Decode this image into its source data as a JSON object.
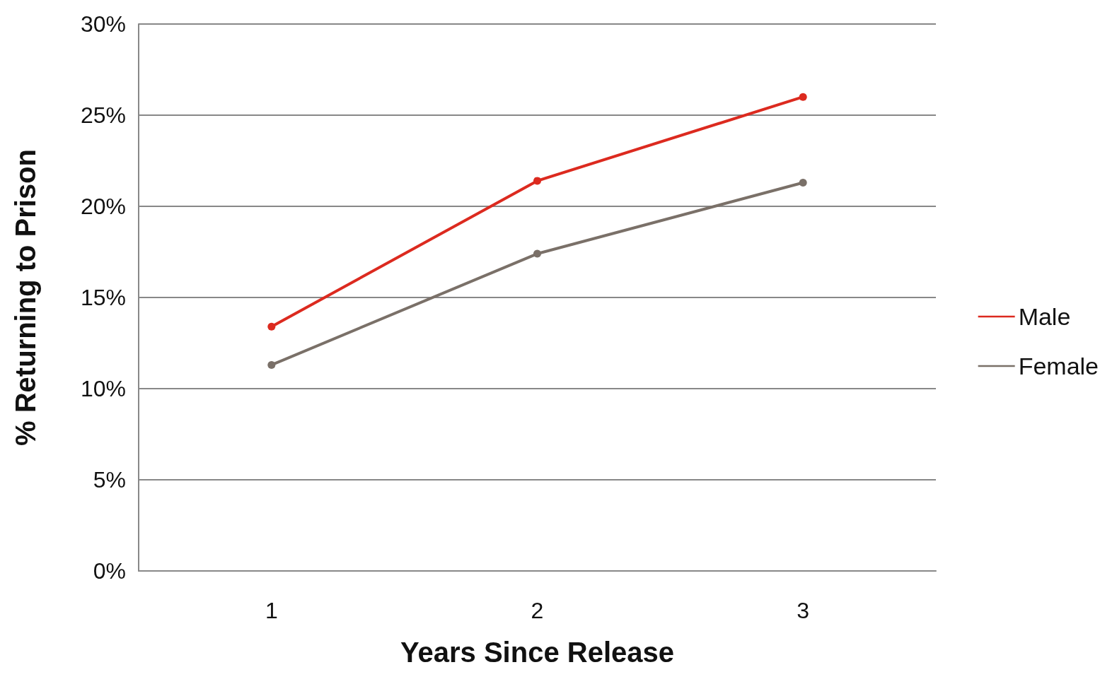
{
  "chart_data": {
    "type": "line",
    "xlabel": "Years Since Release",
    "ylabel": "% Returning to Prison",
    "categories": [
      "1",
      "2",
      "3"
    ],
    "series": [
      {
        "name": "Male",
        "color": "#dc2a1f",
        "values": [
          13.4,
          21.4,
          26.0
        ]
      },
      {
        "name": "Female",
        "color": "#7a7068",
        "values": [
          11.3,
          17.4,
          21.3
        ]
      }
    ],
    "ylim": [
      0,
      30
    ],
    "yticks": [
      {
        "value": 0,
        "label": "0%"
      },
      {
        "value": 5,
        "label": "5%"
      },
      {
        "value": 10,
        "label": "10%"
      },
      {
        "value": 15,
        "label": "15%"
      },
      {
        "value": 20,
        "label": "20%"
      },
      {
        "value": 25,
        "label": "25%"
      },
      {
        "value": 30,
        "label": "30%"
      }
    ],
    "grid": "y",
    "legend": "right",
    "marker": "circle",
    "line_style": "solid"
  }
}
